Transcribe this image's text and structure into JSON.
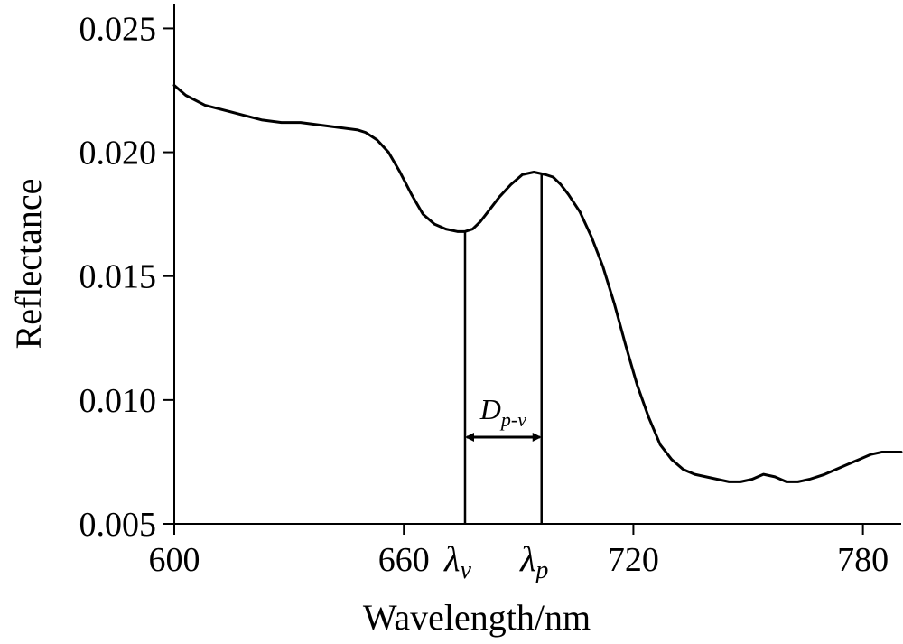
{
  "chart_data": {
    "type": "line",
    "xlabel": "Wavelength/nm",
    "ylabel": "Reflectance",
    "xlim": [
      600,
      790
    ],
    "ylim": [
      0.005,
      0.026
    ],
    "x_ticks": [
      "600",
      "660",
      "720",
      "780"
    ],
    "y_ticks": [
      "0.025",
      "0.020",
      "0.015",
      "0.010",
      "0.005"
    ],
    "series": [
      {
        "x": [
          600,
          603,
          608,
          613,
          618,
          623,
          628,
          633,
          638,
          643,
          648,
          650,
          653,
          656,
          659,
          662,
          665,
          668,
          671,
          674,
          676,
          678,
          680,
          682,
          685,
          688,
          691,
          694,
          697,
          699,
          701,
          703,
          706,
          709,
          712,
          715,
          718,
          721,
          724,
          727,
          730,
          733,
          736,
          739,
          742,
          745,
          748,
          751,
          754,
          757,
          760,
          763,
          766,
          768,
          770,
          773,
          776,
          779,
          782,
          785,
          790
        ],
        "y": [
          0.0227,
          0.0223,
          0.0219,
          0.0217,
          0.0215,
          0.0213,
          0.0212,
          0.0212,
          0.0211,
          0.021,
          0.0209,
          0.0208,
          0.0205,
          0.02,
          0.0192,
          0.0183,
          0.0175,
          0.0171,
          0.0169,
          0.0168,
          0.0168,
          0.0169,
          0.0172,
          0.0176,
          0.0182,
          0.0187,
          0.0191,
          0.0192,
          0.0191,
          0.019,
          0.0187,
          0.0183,
          0.0176,
          0.0166,
          0.0154,
          0.0139,
          0.0122,
          0.0106,
          0.0093,
          0.0082,
          0.0076,
          0.0072,
          0.007,
          0.0069,
          0.0068,
          0.0067,
          0.0067,
          0.0068,
          0.007,
          0.0069,
          0.0067,
          0.0067,
          0.0068,
          0.0069,
          0.007,
          0.0072,
          0.0074,
          0.0076,
          0.0078,
          0.0079,
          0.0079
        ]
      }
    ],
    "markers": [
      {
        "x": 676,
        "label_main": "λ",
        "label_sub": "v"
      },
      {
        "x": 696,
        "label_main": "λ",
        "label_sub": "p"
      }
    ],
    "annotation": {
      "main": "D",
      "sub": "p-v",
      "y": 0.0085
    },
    "grid": false,
    "legend": "none"
  }
}
